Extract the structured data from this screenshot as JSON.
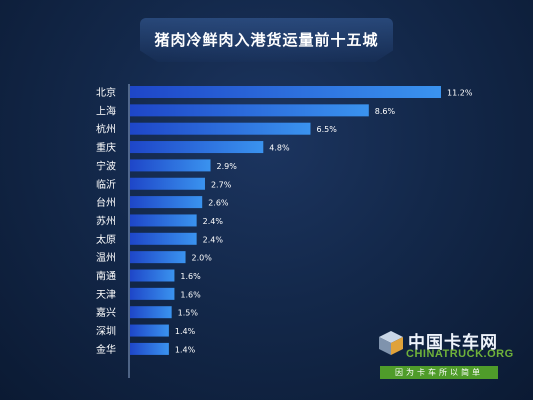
{
  "chart_data": {
    "type": "bar",
    "orientation": "horizontal",
    "title": "猪肉冷鲜肉入港货运量前十五城",
    "categories": [
      "北京",
      "上海",
      "杭州",
      "重庆",
      "宁波",
      "临沂",
      "台州",
      "苏州",
      "太原",
      "温州",
      "南通",
      "天津",
      "嘉兴",
      "深圳",
      "金华"
    ],
    "values": [
      11.2,
      8.6,
      6.5,
      4.8,
      2.9,
      2.7,
      2.6,
      2.4,
      2.4,
      2.0,
      1.6,
      1.6,
      1.5,
      1.4,
      1.4
    ],
    "value_labels": [
      "11.2%",
      "8.6%",
      "6.5%",
      "4.8%",
      "2.9%",
      "2.7%",
      "2.6%",
      "2.4%",
      "2.4%",
      "2.0%",
      "1.6%",
      "1.6%",
      "1.5%",
      "1.4%",
      "1.4%"
    ],
    "xlim": [
      0,
      11.2
    ],
    "grid": false,
    "bar_color": "#2f6fe8"
  },
  "watermark": {
    "cn": "中国卡车网",
    "en": "CHINATRUCK.ORG",
    "slogan": "因为卡车所以简单"
  },
  "colors": {
    "background": "#13284a",
    "bar_start": "#1e46c8",
    "bar_end": "#3a93ef",
    "text": "#ffffff"
  }
}
